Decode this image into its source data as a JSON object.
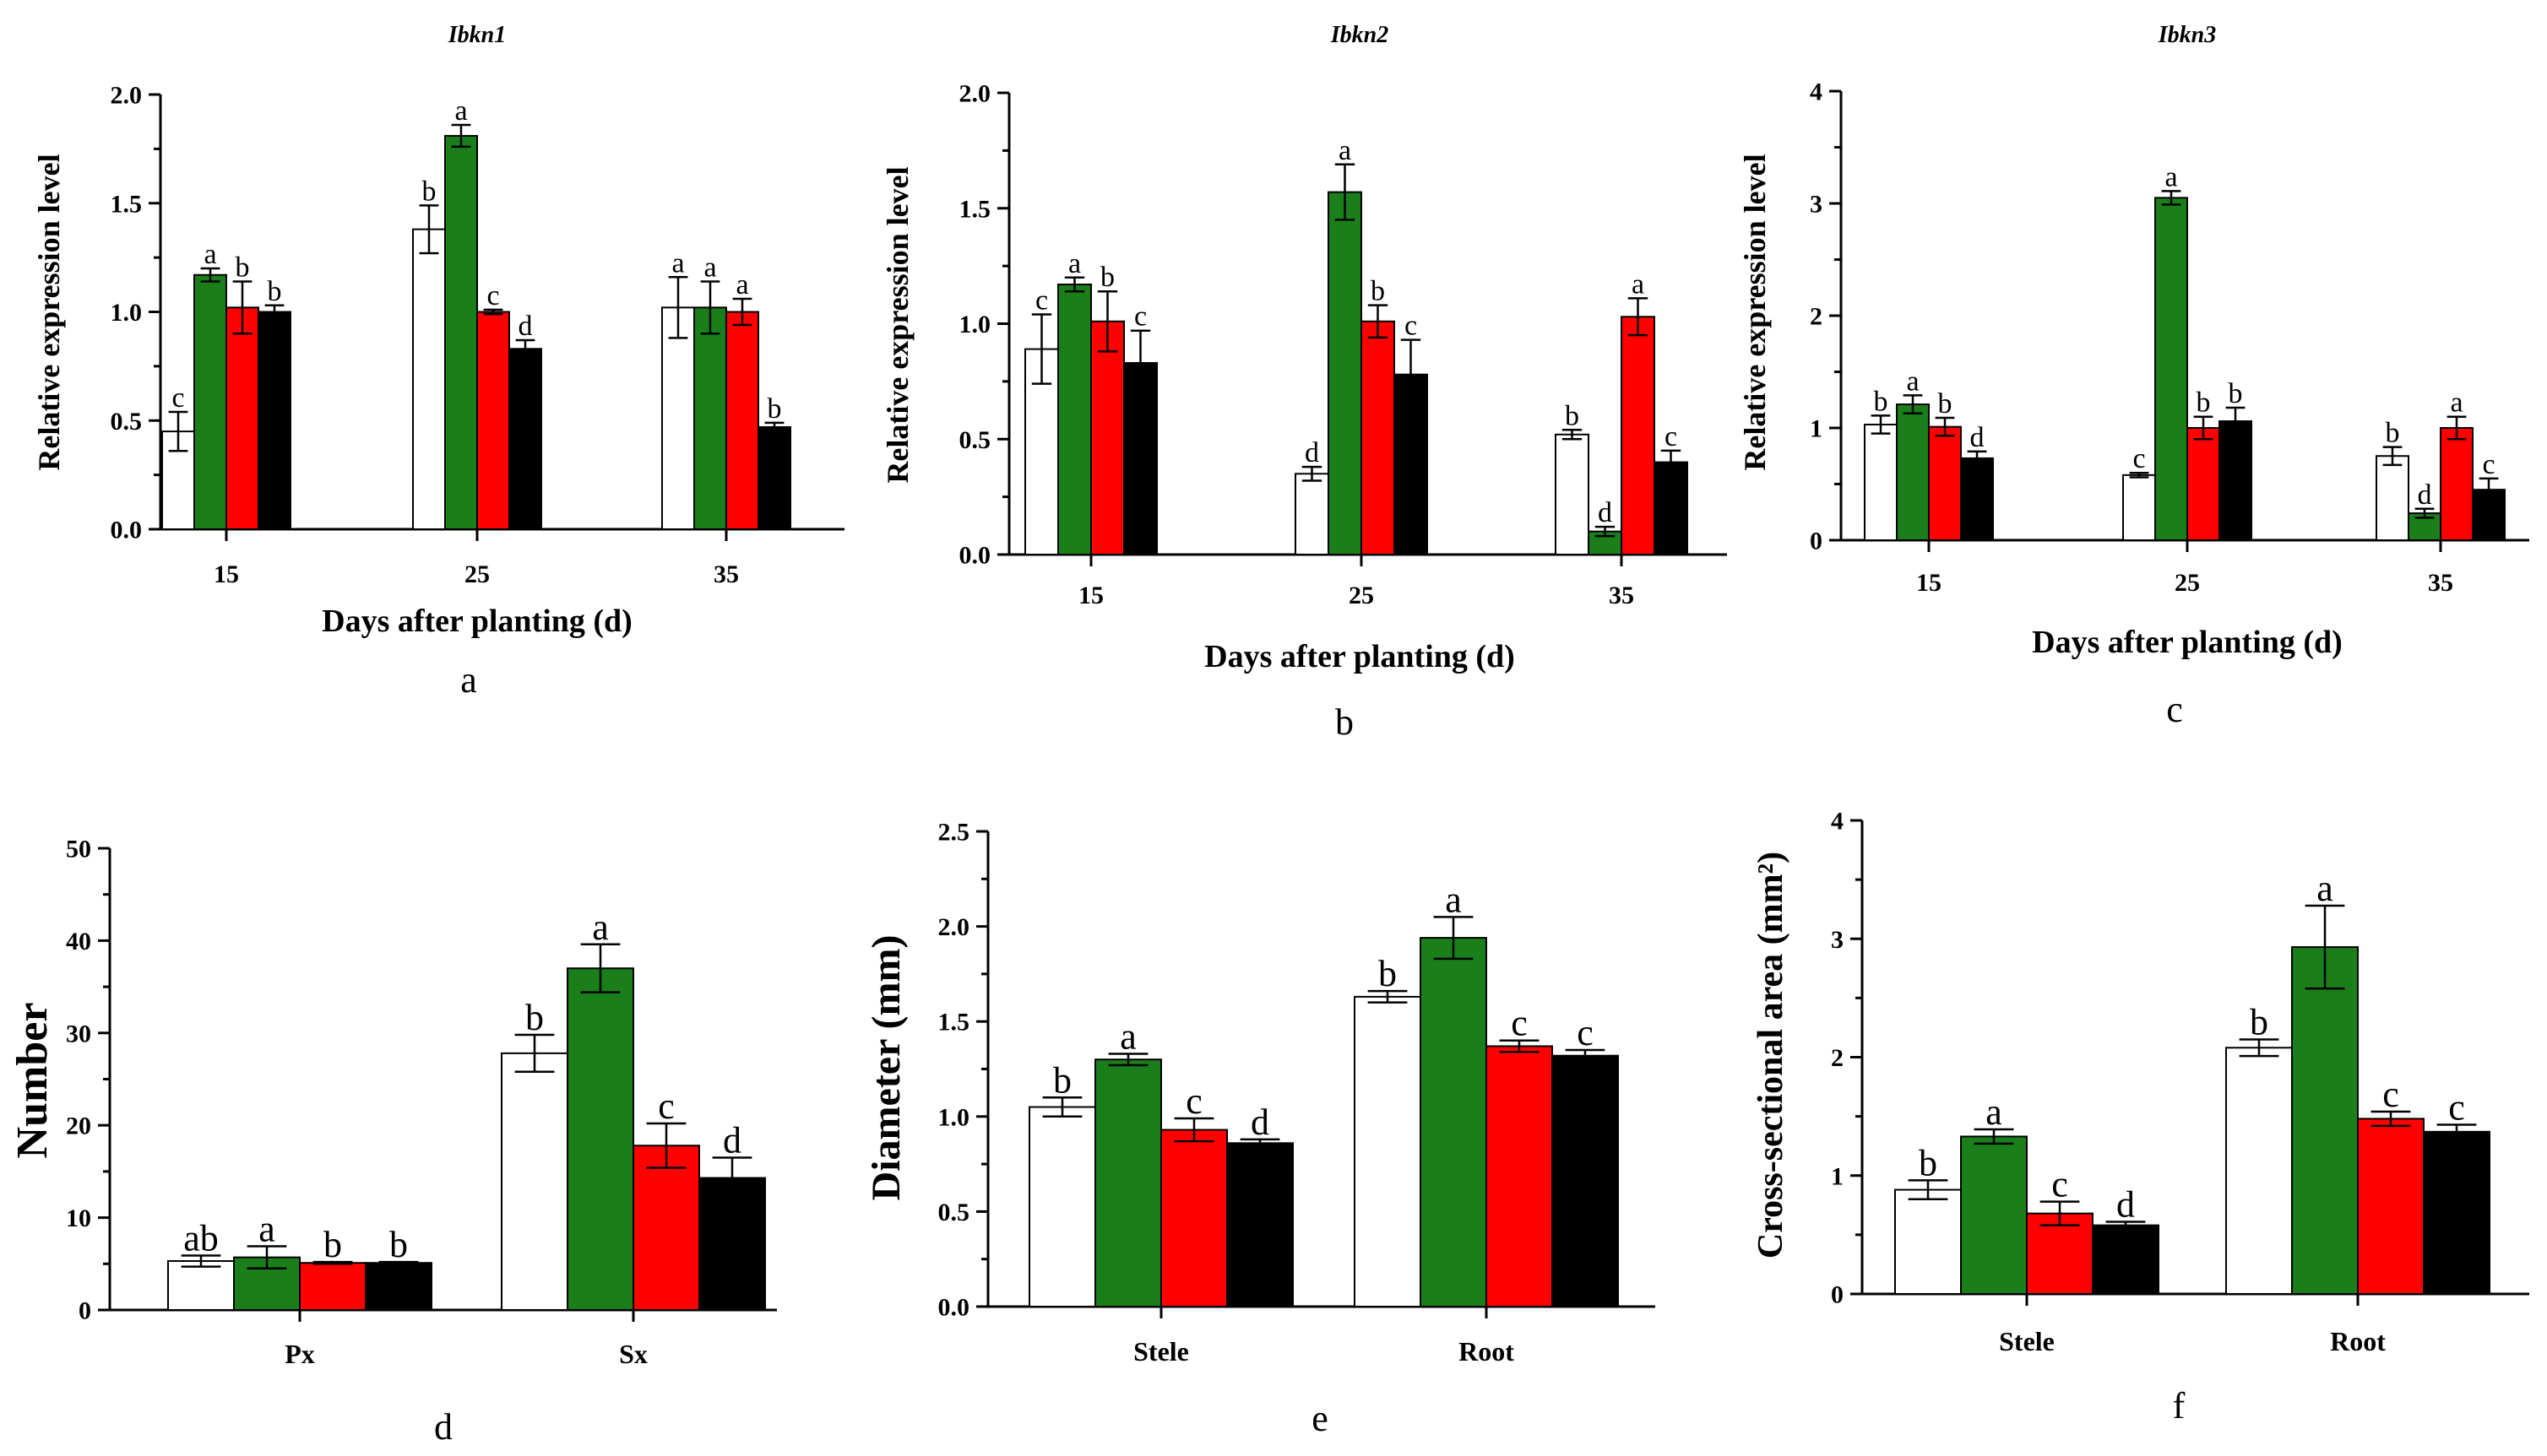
{
  "groups": [
    {
      "name": "white",
      "color": "#ffffff"
    },
    {
      "name": "green",
      "color": "#1a7f1a"
    },
    {
      "name": "red",
      "color": "#ff0000"
    },
    {
      "name": "black",
      "color": "#000000"
    }
  ],
  "chart_data": [
    {
      "panel": "a",
      "type": "bar",
      "title": "Ibkn1",
      "xlabel": "Days after planting (d)",
      "ylabel": "Relative expression level",
      "ylim": [
        0,
        2.0
      ],
      "yticks": [
        "0.0",
        "0.5",
        "1.0",
        "1.5",
        "2.0"
      ],
      "categories": [
        "15",
        "25",
        "35"
      ],
      "series": [
        {
          "name": "white",
          "values": [
            0.45,
            1.38,
            1.02
          ],
          "errors": [
            0.09,
            0.11,
            0.14
          ],
          "letters": [
            "c",
            "b",
            "a"
          ]
        },
        {
          "name": "green",
          "values": [
            1.17,
            1.81,
            1.02
          ],
          "errors": [
            0.03,
            0.05,
            0.12
          ],
          "letters": [
            "a",
            "a",
            "a"
          ]
        },
        {
          "name": "red",
          "values": [
            1.02,
            1.0,
            1.0
          ],
          "errors": [
            0.12,
            0.01,
            0.06
          ],
          "letters": [
            "b",
            "c",
            "a"
          ]
        },
        {
          "name": "black",
          "values": [
            1.0,
            0.83,
            0.47
          ],
          "errors": [
            0.03,
            0.04,
            0.02
          ],
          "letters": [
            "b",
            "d",
            "b"
          ]
        }
      ]
    },
    {
      "panel": "b",
      "type": "bar",
      "title": "Ibkn2",
      "xlabel": "Days after planting (d)",
      "ylabel": "Relative expression level",
      "ylim": [
        0,
        2.0
      ],
      "yticks": [
        "0.0",
        "0.5",
        "1.0",
        "1.5",
        "2.0"
      ],
      "categories": [
        "15",
        "25",
        "35"
      ],
      "series": [
        {
          "name": "white",
          "values": [
            0.89,
            0.35,
            0.52
          ],
          "errors": [
            0.15,
            0.03,
            0.02
          ],
          "letters": [
            "c",
            "d",
            "b"
          ]
        },
        {
          "name": "green",
          "values": [
            1.17,
            1.57,
            0.1
          ],
          "errors": [
            0.03,
            0.12,
            0.02
          ],
          "letters": [
            "a",
            "a",
            "d"
          ]
        },
        {
          "name": "red",
          "values": [
            1.01,
            1.01,
            1.03
          ],
          "errors": [
            0.13,
            0.07,
            0.08
          ],
          "letters": [
            "b",
            "b",
            "a"
          ]
        },
        {
          "name": "black",
          "values": [
            0.83,
            0.78,
            0.4
          ],
          "errors": [
            0.14,
            0.15,
            0.05
          ],
          "letters": [
            "c",
            "c",
            "c"
          ]
        }
      ]
    },
    {
      "panel": "c",
      "type": "bar",
      "title": "Ibkn3",
      "xlabel": "Days after planting (d)",
      "ylabel": "Relative expression level",
      "ylim": [
        0,
        4
      ],
      "yticks": [
        "0",
        "1",
        "2",
        "3",
        "4"
      ],
      "categories": [
        "15",
        "25",
        "35"
      ],
      "series": [
        {
          "name": "white",
          "values": [
            1.03,
            0.58,
            0.75
          ],
          "errors": [
            0.08,
            0.02,
            0.08
          ],
          "letters": [
            "b",
            "c",
            "b"
          ]
        },
        {
          "name": "green",
          "values": [
            1.21,
            3.05,
            0.24
          ],
          "errors": [
            0.08,
            0.06,
            0.04
          ],
          "letters": [
            "a",
            "a",
            "d"
          ]
        },
        {
          "name": "red",
          "values": [
            1.01,
            1.0,
            1.0
          ],
          "errors": [
            0.08,
            0.1,
            0.1
          ],
          "letters": [
            "b",
            "b",
            "a"
          ]
        },
        {
          "name": "black",
          "values": [
            0.73,
            1.06,
            0.45
          ],
          "errors": [
            0.06,
            0.12,
            0.1
          ],
          "letters": [
            "d",
            "b",
            "c"
          ]
        }
      ]
    },
    {
      "panel": "d",
      "type": "bar",
      "title": "",
      "xlabel": "",
      "ylabel": "Number",
      "ylim": [
        0,
        50
      ],
      "yticks": [
        "0",
        "10",
        "20",
        "30",
        "40",
        "50"
      ],
      "categories": [
        "Px",
        "Sx"
      ],
      "series": [
        {
          "name": "white",
          "values": [
            5.3,
            27.8
          ],
          "errors": [
            0.6,
            2.0
          ],
          "letters": [
            "ab",
            "b"
          ]
        },
        {
          "name": "green",
          "values": [
            5.7,
            37.0
          ],
          "errors": [
            1.2,
            2.6
          ],
          "letters": [
            "a",
            "a"
          ]
        },
        {
          "name": "red",
          "values": [
            5.1,
            17.8
          ],
          "errors": [
            0.1,
            2.4
          ],
          "letters": [
            "b",
            "c"
          ]
        },
        {
          "name": "black",
          "values": [
            5.1,
            14.3
          ],
          "errors": [
            0.1,
            2.2
          ],
          "letters": [
            "b",
            "d"
          ]
        }
      ]
    },
    {
      "panel": "e",
      "type": "bar",
      "title": "",
      "xlabel": "",
      "ylabel": "Diameter (mm)",
      "ylim": [
        0,
        2.5
      ],
      "yticks": [
        "0.0",
        "0.5",
        "1.0",
        "1.5",
        "2.0",
        "2.5"
      ],
      "categories": [
        "Stele",
        "Root"
      ],
      "series": [
        {
          "name": "white",
          "values": [
            1.05,
            1.63
          ],
          "errors": [
            0.05,
            0.03
          ],
          "letters": [
            "b",
            "b"
          ]
        },
        {
          "name": "green",
          "values": [
            1.3,
            1.94
          ],
          "errors": [
            0.03,
            0.11
          ],
          "letters": [
            "a",
            "a"
          ]
        },
        {
          "name": "red",
          "values": [
            0.93,
            1.37
          ],
          "errors": [
            0.06,
            0.03
          ],
          "letters": [
            "c",
            "c"
          ]
        },
        {
          "name": "black",
          "values": [
            0.86,
            1.32
          ],
          "errors": [
            0.02,
            0.03
          ],
          "letters": [
            "d",
            "c"
          ]
        }
      ]
    },
    {
      "panel": "f",
      "type": "bar",
      "title": "",
      "xlabel": "",
      "ylabel": "Cross-sectional area (mm²)",
      "ylim": [
        0,
        4
      ],
      "yticks": [
        "0",
        "1",
        "2",
        "3",
        "4"
      ],
      "categories": [
        "Stele",
        "Root"
      ],
      "series": [
        {
          "name": "white",
          "values": [
            0.88,
            2.08
          ],
          "errors": [
            0.08,
            0.07
          ],
          "letters": [
            "b",
            "b"
          ]
        },
        {
          "name": "green",
          "values": [
            1.33,
            2.93
          ],
          "errors": [
            0.06,
            0.35
          ],
          "letters": [
            "a",
            "a"
          ]
        },
        {
          "name": "red",
          "values": [
            0.68,
            1.48
          ],
          "errors": [
            0.1,
            0.06
          ],
          "letters": [
            "c",
            "c"
          ]
        },
        {
          "name": "black",
          "values": [
            0.58,
            1.37
          ],
          "errors": [
            0.03,
            0.06
          ],
          "letters": [
            "d",
            "c"
          ]
        }
      ]
    }
  ]
}
